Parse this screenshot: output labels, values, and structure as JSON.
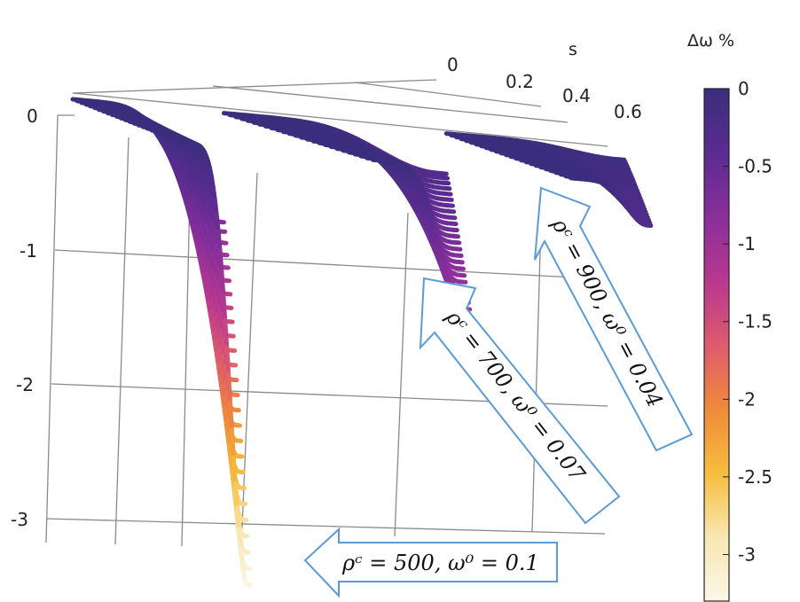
{
  "chart_data": {
    "type": "surface",
    "title": "",
    "axes": {
      "s": {
        "label": "s",
        "ticks": [
          "0",
          "0.2",
          "0.4",
          "0.6"
        ],
        "range": [
          0,
          0.6
        ]
      },
      "z": {
        "ticks": [
          "0",
          "-1",
          "-2",
          "-3"
        ],
        "range": [
          -3.3,
          0
        ]
      }
    },
    "colorbar": {
      "label": "Δω %",
      "ticks": [
        "0",
        "-0.5",
        "-1",
        "-1.5",
        "-2",
        "-2.5",
        "-3"
      ],
      "range": [
        -3.3,
        0
      ],
      "colors": [
        "#3b2e7d",
        "#5a2c91",
        "#8a2f9b",
        "#b8388f",
        "#de5a6e",
        "#f08a3a",
        "#f6bd3c",
        "#f8e7b3",
        "#fbf6e6"
      ]
    },
    "series": [
      {
        "rho_c": 500,
        "omega0": 0.1,
        "s_range": [
          0,
          0.17
        ],
        "min_delta_omega": -3.25,
        "label": "ρᶜ = 500, ω⁰ = 0.1"
      },
      {
        "rho_c": 700,
        "omega0": 0.07,
        "s_range": [
          0.17,
          0.42
        ],
        "min_delta_omega": -1.2,
        "label": "ρᶜ = 700, ω⁰ = 0.07"
      },
      {
        "rho_c": 900,
        "omega0": 0.04,
        "s_range": [
          0.42,
          0.62
        ],
        "min_delta_omega": -0.3,
        "label": "ρᶜ = 900, ω⁰ = 0.04"
      }
    ]
  }
}
